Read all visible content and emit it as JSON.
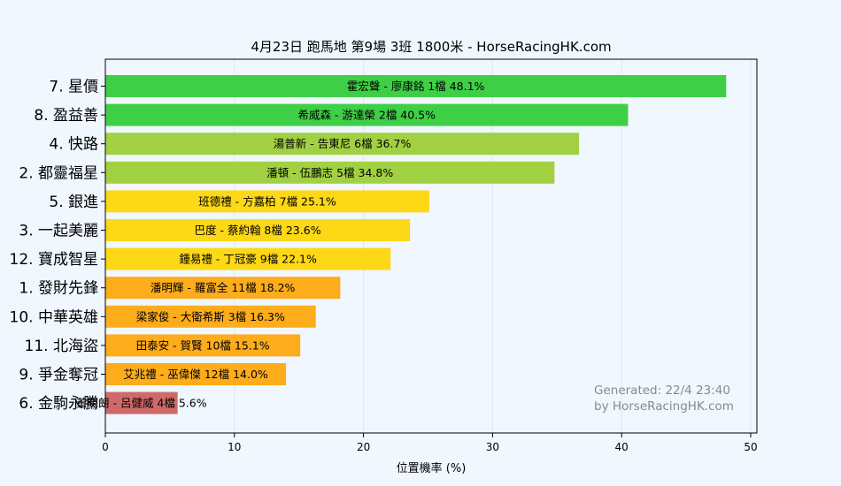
{
  "chart_data": {
    "type": "bar",
    "orientation": "horizontal",
    "title": "4月23日  跑馬地  第9場  3班  1800米 - HorseRacingHK.com",
    "xlabel": "位置機率 (%)",
    "ylabel": "",
    "xlim": [
      0,
      50
    ],
    "xticks": [
      "0",
      "10",
      "20",
      "30",
      "40",
      "50"
    ],
    "grid": "vertical",
    "categories": [
      "7. 星價",
      "8. 盈益善",
      "4. 快路",
      "2. 都靈福星",
      "5. 銀進",
      "3. 一起美麗",
      "12. 寶成智星",
      "1. 發財先鋒",
      "10. 中華英雄",
      "11. 北海盜",
      "9. 爭金奪冠",
      "6. 金駒永騰"
    ],
    "values": [
      48.1,
      40.5,
      36.7,
      34.8,
      25.1,
      23.6,
      22.1,
      18.2,
      16.3,
      15.1,
      14.0,
      5.6
    ],
    "bar_labels": [
      "霍宏聲 - 廖康銘 1檔  48.1%",
      "希威森 - 游達榮 2檔  40.5%",
      "湯普新 - 告東尼 6檔  36.7%",
      "潘頓 - 伍鵬志 5檔  34.8%",
      "班德禮 - 方嘉柏 7檔  25.1%",
      "巴度 - 蔡約翰 8檔  23.6%",
      "鍾易禮 - 丁冠豪 9檔  22.1%",
      "潘明輝 - 羅富全 11檔  18.2%",
      "梁家俊 - 大衛希斯 3檔  16.3%",
      "田泰安 - 賀賢 10檔  15.1%",
      "艾兆禮 - 巫偉傑 12檔  14.0%",
      "董明朗 - 呂健威 4檔  5.6%"
    ],
    "bar_colors": [
      "#3fcf46",
      "#3fcf46",
      "#a1d143",
      "#a1d143",
      "#fdd817",
      "#fdd817",
      "#fdd817",
      "#fdac1c",
      "#fdac1c",
      "#fdac1c",
      "#fdac1c",
      "#cf6a6a"
    ],
    "watermark": [
      "Generated: 22/4 23:40",
      "by HorseRacingHK.com"
    ]
  }
}
